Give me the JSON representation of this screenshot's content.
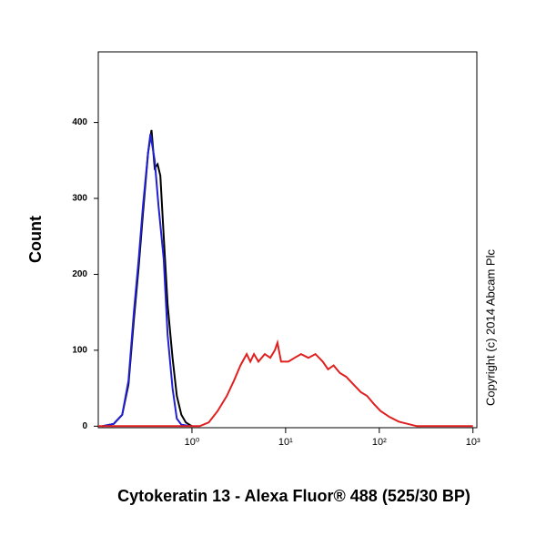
{
  "chart_data": {
    "type": "line",
    "y_label": "Count",
    "x_label": "Cytokeratin 13 - Alexa Fluor® 488 (525/30 BP)",
    "annotation": "Copyright (c) 2014 Abcam Plc",
    "log_x": true,
    "xlim": [
      0.1,
      1100
    ],
    "xticks": [
      {
        "value": 1,
        "label": "10⁰"
      },
      {
        "value": 10,
        "label": "10¹"
      },
      {
        "value": 100,
        "label": "10²"
      },
      {
        "value": 1000,
        "label": "10³"
      }
    ],
    "ylim": [
      -2,
      493
    ],
    "yticks": [
      0,
      100,
      200,
      300,
      400
    ],
    "series": [
      {
        "color": "#000000",
        "x": [
          0.11,
          0.146,
          0.18,
          0.21,
          0.24,
          0.27,
          0.3,
          0.34,
          0.37,
          0.4,
          0.43,
          0.46,
          0.5,
          0.55,
          0.62,
          0.69,
          0.77,
          0.86,
          1.0
        ],
        "values": [
          0,
          3,
          15,
          55,
          140,
          210,
          280,
          360,
          390,
          340,
          345,
          330,
          250,
          160,
          90,
          40,
          15,
          5,
          0
        ]
      },
      {
        "color": "#2020d0",
        "x": [
          0.11,
          0.146,
          0.18,
          0.21,
          0.24,
          0.27,
          0.3,
          0.34,
          0.36,
          0.4,
          0.44,
          0.5,
          0.55,
          0.62,
          0.69,
          0.77,
          0.97
        ],
        "values": [
          0,
          3,
          15,
          60,
          150,
          220,
          290,
          360,
          385,
          350,
          290,
          220,
          120,
          50,
          10,
          2,
          0
        ]
      },
      {
        "color": "#e02020",
        "x": [
          0.1,
          1.21,
          1.51,
          1.88,
          2.36,
          2.81,
          3.29,
          3.84,
          4.2,
          4.59,
          5.13,
          6.0,
          6.85,
          7.66,
          8.19,
          8.95,
          10.7,
          12.5,
          14.6,
          17.5,
          20.8,
          24.9,
          28.4,
          32.5,
          38,
          44.4,
          53,
          63.4,
          74,
          86.5,
          103,
          129,
          161,
          201,
          252,
          1000
        ],
        "values": [
          0,
          0,
          5,
          20,
          40,
          60,
          80,
          95,
          85,
          95,
          85,
          95,
          90,
          100,
          110,
          85,
          85,
          90,
          95,
          90,
          95,
          85,
          75,
          80,
          70,
          65,
          55,
          45,
          40,
          30,
          20,
          12,
          6,
          3,
          0,
          0
        ]
      }
    ]
  }
}
